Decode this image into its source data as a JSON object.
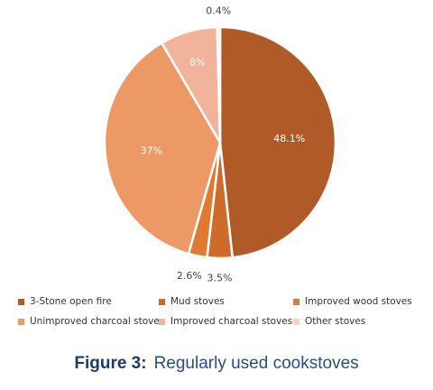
{
  "chart_data": {
    "type": "pie",
    "title": "",
    "slices": [
      {
        "label": "3-Stone open fire",
        "value": 48.1,
        "display": "48.1%",
        "color": "#b05a27"
      },
      {
        "label": "Mud stoves",
        "value": 3.5,
        "display": "3.5%",
        "color": "#cf6b28"
      },
      {
        "label": "Improved wood stoves",
        "value": 2.6,
        "display": "2.6%",
        "color": "#e07a32"
      },
      {
        "label": "Unimproved charcoal stoves",
        "value": 37,
        "display": "37%",
        "color": "#ed9966"
      },
      {
        "label": "Improved charcoal stoves",
        "value": 8,
        "display": "8%",
        "color": "#f2b39b"
      },
      {
        "label": "Other stoves",
        "value": 0.4,
        "display": "0.4%",
        "color": "#f6d2c4"
      }
    ],
    "legend_placement": "bottom"
  },
  "legend": {
    "items": [
      {
        "label": "3-Stone open fire",
        "color": "#b05a27"
      },
      {
        "label": "Mud stoves",
        "color": "#cf6b28"
      },
      {
        "label": "Improved wood stoves",
        "color": "#e07a32"
      },
      {
        "label": "Unimproved charcoal stoves",
        "color": "#ed9966"
      },
      {
        "label": "Improved charcoal stoves",
        "color": "#f2b39b"
      },
      {
        "label": "Other stoves",
        "color": "#f6d2c4"
      }
    ]
  },
  "caption": {
    "label": "Figure 3:",
    "text": "Regularly used cookstoves"
  }
}
